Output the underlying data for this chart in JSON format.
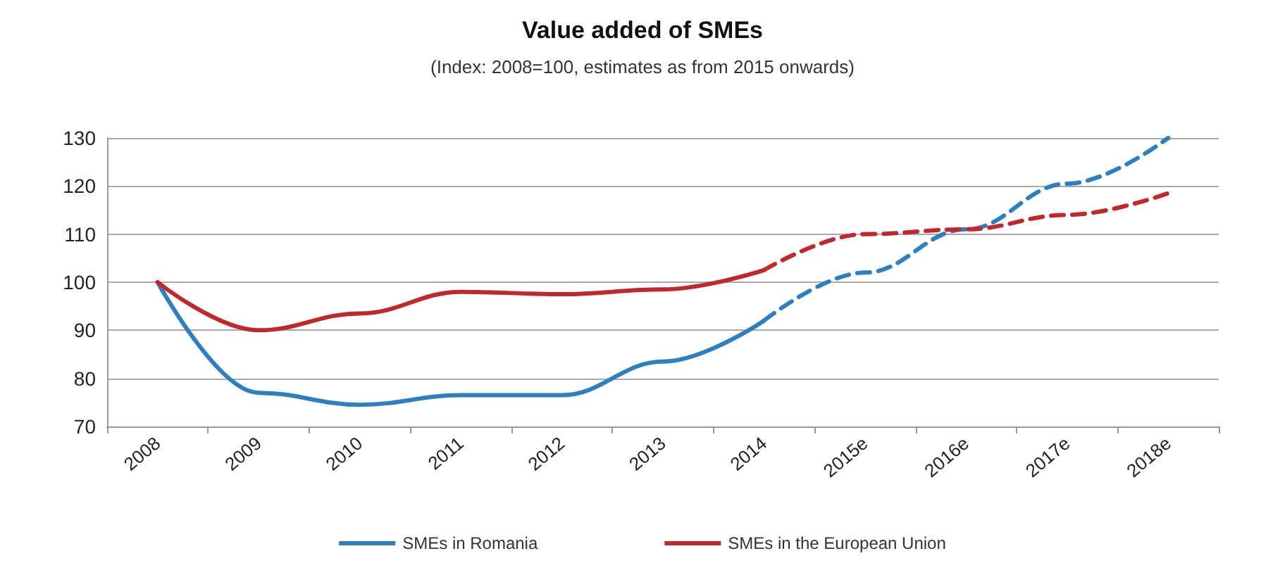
{
  "chart_data": {
    "type": "line",
    "title": "Value added of SMEs",
    "subtitle": "(Index: 2008=100, estimates as from 2015 onwards)",
    "categories": [
      "2008",
      "2009",
      "2010",
      "2011",
      "2012",
      "2013",
      "2014",
      "2015e",
      "2016e",
      "2017e",
      "2018e"
    ],
    "series": [
      {
        "name": "SMEs in Romania",
        "color": "#2e7fc0",
        "line_style": "solid",
        "values": [
          100,
          77,
          74.5,
          76.5,
          76.5,
          83.5,
          92,
          null,
          null,
          null,
          null
        ]
      },
      {
        "color": "#2e7fc0",
        "line_style": "dashed",
        "values": [
          null,
          null,
          null,
          null,
          null,
          null,
          92,
          102,
          111,
          120.5,
          130
        ]
      },
      {
        "name": "SMEs in the European Union",
        "color": "#c0282c",
        "line_style": "solid",
        "values": [
          100,
          90,
          93.5,
          98,
          97.5,
          98.5,
          102.5,
          null,
          null,
          null,
          null
        ]
      },
      {
        "color": "#c0282c",
        "line_style": "dashed",
        "values": [
          null,
          null,
          null,
          null,
          null,
          null,
          102.5,
          110,
          111,
          114,
          118.5
        ]
      }
    ],
    "ylim": [
      70,
      130
    ],
    "yticks": [
      70,
      80,
      90,
      100,
      110,
      120,
      130
    ],
    "grid": "y",
    "legend": "bottom",
    "marker": "none"
  }
}
